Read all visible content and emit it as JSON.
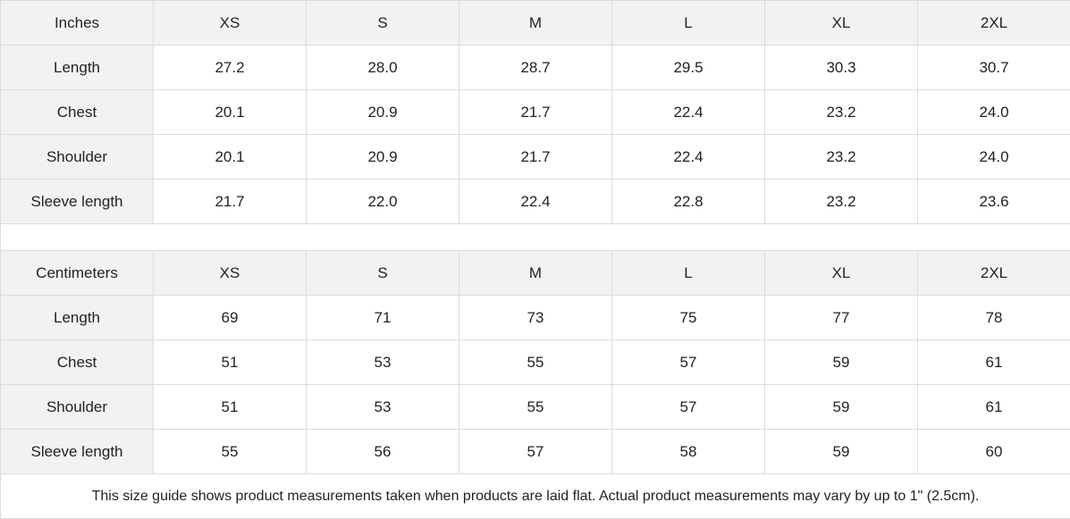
{
  "inches": {
    "header": [
      "Inches",
      "XS",
      "S",
      "M",
      "L",
      "XL",
      "2XL"
    ],
    "rows": [
      {
        "label": "Length",
        "values": [
          "27.2",
          "28.0",
          "28.7",
          "29.5",
          "30.3",
          "30.7"
        ]
      },
      {
        "label": "Chest",
        "values": [
          "20.1",
          "20.9",
          "21.7",
          "22.4",
          "23.2",
          "24.0"
        ]
      },
      {
        "label": "Shoulder",
        "values": [
          "20.1",
          "20.9",
          "21.7",
          "22.4",
          "23.2",
          "24.0"
        ]
      },
      {
        "label": "Sleeve length",
        "values": [
          "21.7",
          "22.0",
          "22.4",
          "22.8",
          "23.2",
          "23.6"
        ]
      }
    ]
  },
  "centimeters": {
    "header": [
      "Centimeters",
      "XS",
      "S",
      "M",
      "L",
      "XL",
      "2XL"
    ],
    "rows": [
      {
        "label": "Length",
        "values": [
          "69",
          "71",
          "73",
          "75",
          "77",
          "78"
        ]
      },
      {
        "label": "Chest",
        "values": [
          "51",
          "53",
          "55",
          "57",
          "59",
          "61"
        ]
      },
      {
        "label": "Shoulder",
        "values": [
          "51",
          "53",
          "55",
          "57",
          "59",
          "61"
        ]
      },
      {
        "label": "Sleeve length",
        "values": [
          "55",
          "56",
          "57",
          "58",
          "59",
          "60"
        ]
      }
    ]
  },
  "footnote": "This size guide shows product measurements taken when products are laid flat.  Actual product measurements may vary by up to 1\" (2.5cm)."
}
